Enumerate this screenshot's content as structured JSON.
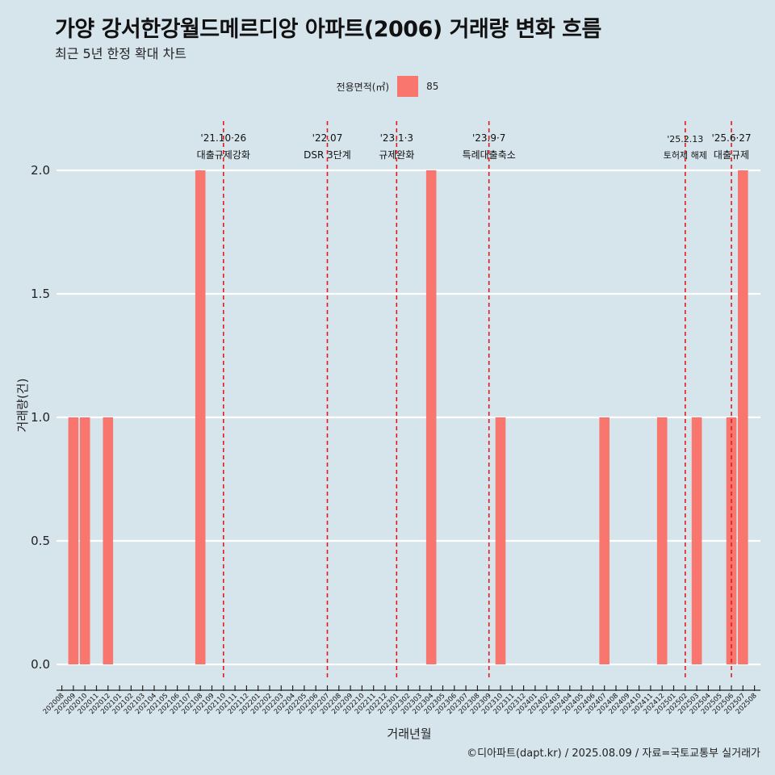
{
  "title": "가양 강서한강월드메르디앙 아파트(2006) 거래량 변화 흐름",
  "subtitle": "최근 5년 한정 확대 차트",
  "caption": "©디아파트(dapt.kr) / 2025.08.09 / 자료=국토교통부 실거래가",
  "colors": {
    "bar": "#f8766d",
    "background": "#d6e4ec",
    "event_line": "#e41a1c",
    "grid": "#ffffff"
  },
  "chart_data": {
    "type": "bar",
    "xlabel": "거래년월",
    "ylabel": "거래량(건)",
    "ylim": [
      0,
      2
    ],
    "yticks": [
      "0.0",
      "0.5",
      "1.0",
      "1.5",
      "2.0"
    ],
    "grid": true,
    "legend": {
      "title": "전용면적(㎡)",
      "placement": "top",
      "entries": [
        "85"
      ]
    },
    "categories": [
      "202008",
      "202009",
      "202010",
      "202011",
      "202012",
      "202101",
      "202102",
      "202103",
      "202104",
      "202105",
      "202106",
      "202107",
      "202108",
      "202109",
      "202110",
      "202111",
      "202112",
      "202201",
      "202202",
      "202203",
      "202204",
      "202205",
      "202206",
      "202207",
      "202208",
      "202209",
      "202210",
      "202211",
      "202212",
      "202301",
      "202302",
      "202303",
      "202304",
      "202305",
      "202306",
      "202307",
      "202308",
      "202309",
      "202310",
      "202311",
      "202312",
      "202401",
      "202402",
      "202403",
      "202404",
      "202405",
      "202406",
      "202407",
      "202408",
      "202409",
      "202410",
      "202411",
      "202412",
      "202501",
      "202502",
      "202503",
      "202504",
      "202505",
      "202506",
      "202507",
      "202508"
    ],
    "series": [
      {
        "name": "85",
        "values": [
          {
            "x": "202009",
            "y": 1
          },
          {
            "x": "202010",
            "y": 1
          },
          {
            "x": "202012",
            "y": 1
          },
          {
            "x": "202108",
            "y": 2
          },
          {
            "x": "202304",
            "y": 2
          },
          {
            "x": "202310",
            "y": 1
          },
          {
            "x": "202407",
            "y": 1
          },
          {
            "x": "202412",
            "y": 1
          },
          {
            "x": "202503",
            "y": 1
          },
          {
            "x": "202506",
            "y": 1
          },
          {
            "x": "202507",
            "y": 2
          }
        ]
      }
    ],
    "events": [
      {
        "x": "202110",
        "date": "'21.10·26",
        "label": "대출규제강화"
      },
      {
        "x": "202207",
        "date": "'22.07",
        "label": "DSR 3단계"
      },
      {
        "x": "202301",
        "date": "'23.1·3",
        "label": "규제완화"
      },
      {
        "x": "202309",
        "date": "'23.9·7",
        "label": "특례대출축소"
      },
      {
        "x": "202502",
        "date": "'25.2.13",
        "label": "토허제 해제"
      },
      {
        "x": "202506",
        "date": "'25.6·27",
        "label": "대출규제"
      }
    ]
  }
}
